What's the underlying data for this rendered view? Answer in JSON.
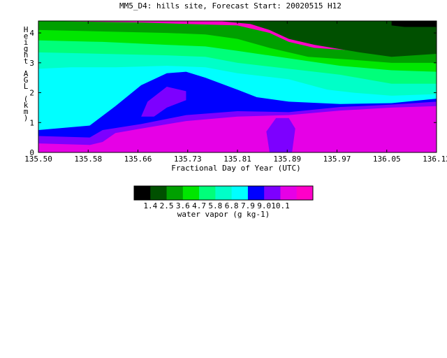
{
  "chart_data": {
    "type": "heatmap",
    "title": "MM5_D4: hills site,  Forecast Start: 20020515 H12",
    "xlabel": "Fractional Day of Year (UTC)",
    "ylabel_chars": [
      "H",
      "e",
      "i",
      "g",
      "h",
      "t",
      "",
      "A",
      "G",
      "L",
      "",
      "(",
      "k",
      "m",
      ")"
    ],
    "x_ticks": [
      "135.50",
      "135.58",
      "135.66",
      "135.73",
      "135.81",
      "135.89",
      "135.97",
      "136.05",
      "136.12"
    ],
    "y_ticks": [
      "0",
      "1",
      "2",
      "3",
      "4"
    ],
    "xlim": [
      135.5,
      136.12
    ],
    "ylim": [
      0,
      4.4
    ],
    "colorbar": {
      "label": "water vapor (g kg-1)",
      "tick_labels": [
        "1.4",
        "2.5",
        "3.6",
        "4.7",
        "5.8",
        "6.8",
        "7.9",
        "9.0",
        "10.1"
      ],
      "colors": [
        "#000000",
        "#005000",
        "#00a000",
        "#00e600",
        "#00ff7a",
        "#00ffc8",
        "#00ffff",
        "#0000ff",
        "#7d00ff",
        "#e600e6",
        "#ff00c8"
      ]
    },
    "bands": [
      {
        "value": 10.1,
        "color": "#ff00c8",
        "top": [
          [
            135.5,
            0.0
          ],
          [
            136.12,
            0.0
          ]
        ]
      },
      {
        "value": 9.0,
        "color": "#e600e6",
        "top": [
          [
            135.5,
            0.3
          ],
          [
            135.58,
            0.25
          ],
          [
            135.6,
            0.35
          ],
          [
            135.62,
            0.65
          ],
          [
            135.66,
            0.8
          ],
          [
            135.73,
            1.05
          ],
          [
            135.81,
            1.2
          ],
          [
            135.89,
            1.25
          ],
          [
            135.97,
            1.4
          ],
          [
            136.05,
            1.5
          ],
          [
            136.12,
            1.55
          ]
        ]
      },
      {
        "value": 7.9,
        "color": "#7d00ff",
        "top": [
          [
            135.5,
            0.55
          ],
          [
            135.58,
            0.5
          ],
          [
            135.6,
            0.75
          ],
          [
            135.66,
            0.95
          ],
          [
            135.73,
            1.25
          ],
          [
            135.81,
            1.38
          ],
          [
            135.89,
            1.35
          ],
          [
            135.97,
            1.52
          ],
          [
            136.05,
            1.6
          ],
          [
            136.12,
            1.7
          ]
        ]
      },
      {
        "value": 6.8,
        "color": "#0000ff",
        "top": [
          [
            135.5,
            0.75
          ],
          [
            135.58,
            0.9
          ],
          [
            135.62,
            1.55
          ],
          [
            135.66,
            2.25
          ],
          [
            135.7,
            2.65
          ],
          [
            135.73,
            2.7
          ],
          [
            135.76,
            2.5
          ],
          [
            135.81,
            2.1
          ],
          [
            135.84,
            1.85
          ],
          [
            135.89,
            1.7
          ],
          [
            135.97,
            1.62
          ],
          [
            136.05,
            1.65
          ],
          [
            136.12,
            1.8
          ]
        ]
      },
      {
        "value": 5.8,
        "color": "#00ffff",
        "top": [
          [
            135.5,
            2.8
          ],
          [
            135.55,
            2.85
          ],
          [
            135.62,
            2.85
          ],
          [
            135.7,
            2.9
          ],
          [
            135.76,
            2.85
          ],
          [
            135.81,
            2.65
          ],
          [
            135.89,
            2.45
          ],
          [
            135.95,
            2.1
          ],
          [
            135.99,
            2.0
          ],
          [
            136.05,
            1.9
          ],
          [
            136.12,
            1.95
          ]
        ]
      },
      {
        "value": 4.7,
        "color": "#00ffc8",
        "top": [
          [
            135.5,
            3.35
          ],
          [
            135.6,
            3.3
          ],
          [
            135.7,
            3.25
          ],
          [
            135.76,
            3.2
          ],
          [
            135.81,
            3.0
          ],
          [
            135.89,
            2.8
          ],
          [
            135.97,
            2.6
          ],
          [
            136.05,
            2.3
          ],
          [
            136.12,
            2.3
          ]
        ]
      },
      {
        "value": 3.6,
        "color": "#00ff7a",
        "top": [
          [
            135.5,
            3.75
          ],
          [
            135.6,
            3.7
          ],
          [
            135.7,
            3.6
          ],
          [
            135.76,
            3.55
          ],
          [
            135.81,
            3.4
          ],
          [
            135.89,
            3.15
          ],
          [
            135.97,
            2.9
          ],
          [
            136.05,
            2.75
          ],
          [
            136.12,
            2.7
          ]
        ]
      },
      {
        "value": 2.5,
        "color": "#00e600",
        "top": [
          [
            135.5,
            4.1
          ],
          [
            135.6,
            4.05
          ],
          [
            135.7,
            4.0
          ],
          [
            135.76,
            3.95
          ],
          [
            135.81,
            3.8
          ],
          [
            135.86,
            3.5
          ],
          [
            135.92,
            3.2
          ],
          [
            135.99,
            3.1
          ],
          [
            136.05,
            3.0
          ],
          [
            136.12,
            3.0
          ]
        ]
      },
      {
        "value": 1.4,
        "color": "#00a000",
        "top": [
          [
            135.5,
            4.4
          ],
          [
            135.66,
            4.35
          ],
          [
            135.73,
            4.3
          ],
          [
            135.81,
            4.25
          ],
          [
            135.86,
            4.0
          ],
          [
            135.89,
            3.7
          ],
          [
            135.93,
            3.5
          ],
          [
            136.0,
            3.4
          ],
          [
            136.05,
            3.45
          ],
          [
            136.12,
            3.4
          ]
        ]
      },
      {
        "value": 0.3,
        "color": "#005000",
        "top": [
          [
            135.5,
            4.4
          ],
          [
            135.78,
            4.4
          ],
          [
            135.83,
            4.3
          ],
          [
            135.86,
            4.1
          ],
          [
            135.89,
            3.8
          ],
          [
            135.93,
            3.6
          ],
          [
            136.0,
            3.35
          ],
          [
            136.05,
            3.2
          ],
          [
            136.12,
            3.3
          ]
        ],
        "fill_from_top": true
      }
    ],
    "blobs": [
      {
        "color": "#7d00ff",
        "pts": [
          [
            135.66,
            1.2
          ],
          [
            135.67,
            1.7
          ],
          [
            135.7,
            2.2
          ],
          [
            135.73,
            2.05
          ],
          [
            135.73,
            1.75
          ],
          [
            135.7,
            1.5
          ],
          [
            135.68,
            1.2
          ]
        ]
      },
      {
        "color": "#7d00ff",
        "pts": [
          [
            135.86,
            0.0
          ],
          [
            135.855,
            0.7
          ],
          [
            135.87,
            1.15
          ],
          [
            135.89,
            1.15
          ],
          [
            135.9,
            0.8
          ],
          [
            135.895,
            0.0
          ]
        ]
      },
      {
        "color": "#000000",
        "pts": [
          [
            136.05,
            4.4
          ],
          [
            136.05,
            4.25
          ],
          [
            136.07,
            4.2
          ],
          [
            136.12,
            4.2
          ],
          [
            136.12,
            4.4
          ]
        ]
      }
    ]
  }
}
